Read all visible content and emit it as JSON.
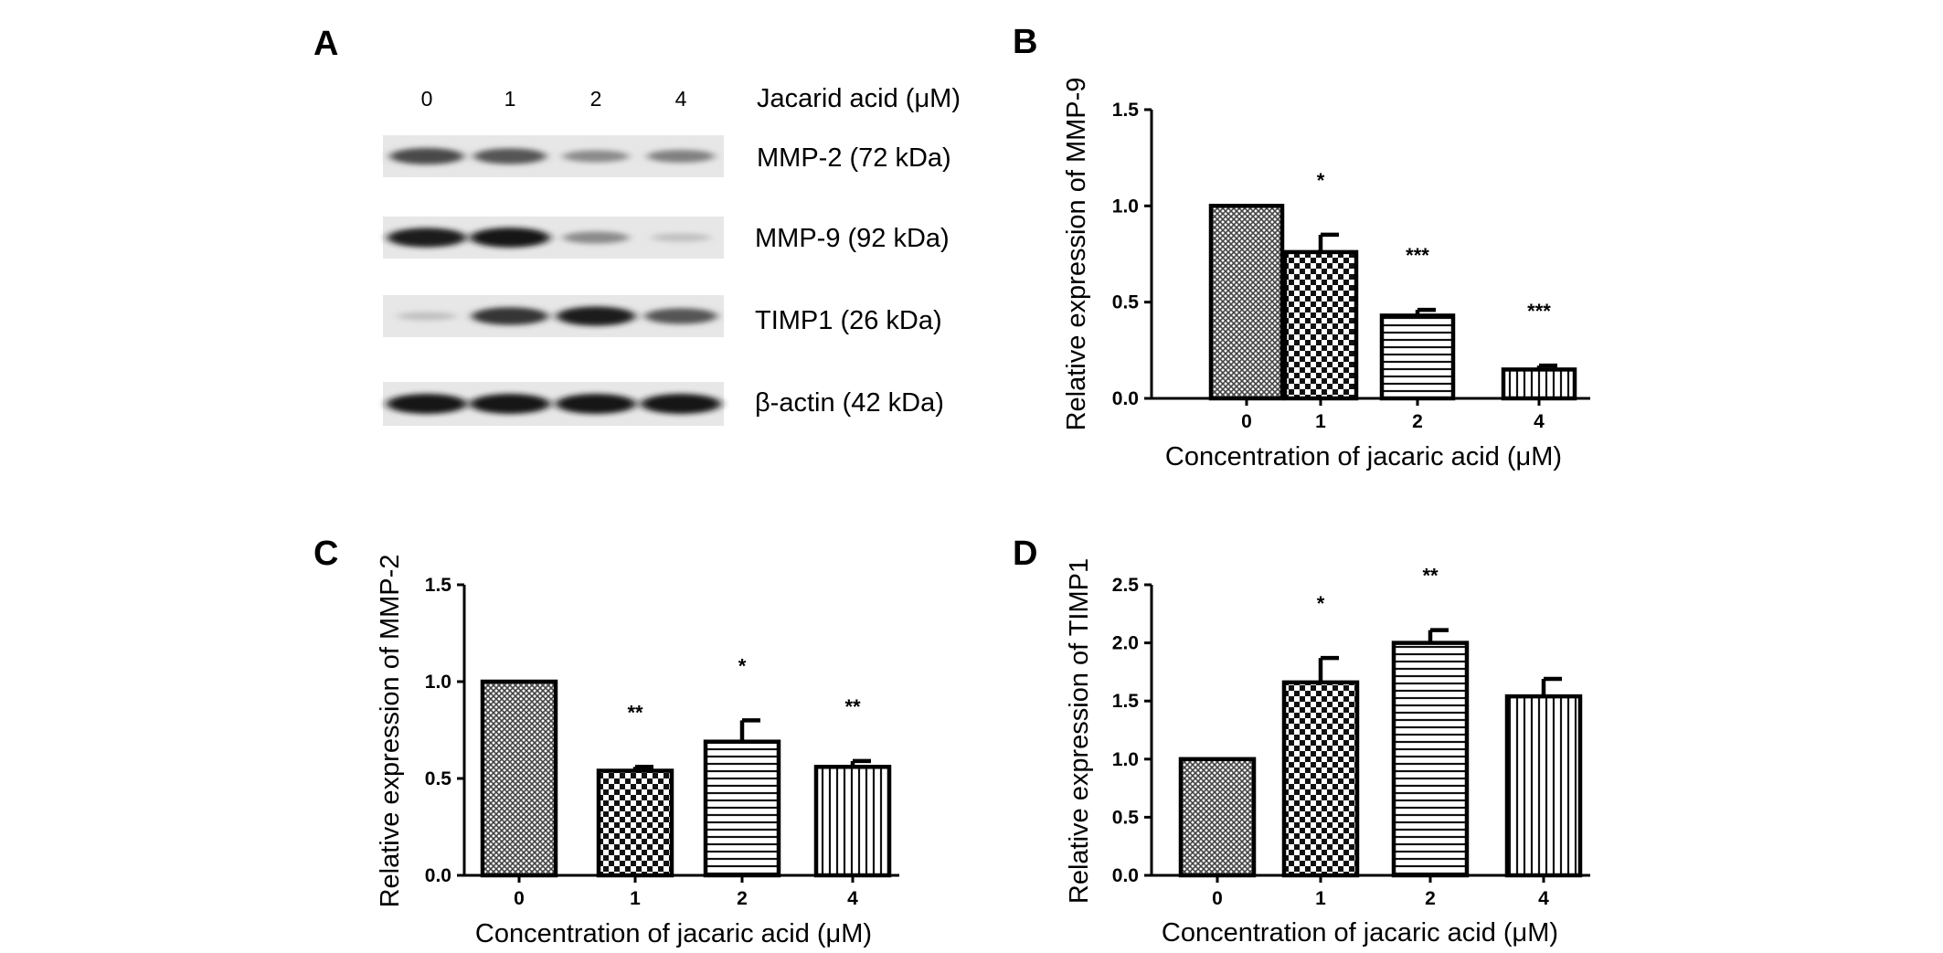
{
  "panel_labels": [
    "A",
    "B",
    "C",
    "D"
  ],
  "blot": {
    "lanes": [
      "0",
      "1",
      "2",
      "4"
    ],
    "title": "Jacarid acid (μM)",
    "bands": [
      {
        "label": "MMP-2 (72 kDa)",
        "intensities": [
          0.75,
          0.7,
          0.45,
          0.5
        ]
      },
      {
        "label": "MMP-9 (92 kDa)",
        "intensities": [
          0.95,
          0.98,
          0.45,
          0.2
        ]
      },
      {
        "label": "TIMP1 (26 kDa)",
        "intensities": [
          0.2,
          0.85,
          0.95,
          0.7
        ]
      },
      {
        "label": "β-actin (42 kDa)",
        "intensities": [
          1.0,
          1.0,
          1.0,
          1.0
        ]
      }
    ]
  },
  "chart_data": [
    {
      "panel": "B",
      "type": "bar",
      "categories": [
        "0",
        "1",
        "2",
        "4"
      ],
      "values": [
        1.0,
        0.76,
        0.43,
        0.15
      ],
      "errors": [
        0,
        0.09,
        0.03,
        0.02
      ],
      "significance": [
        "",
        "*",
        "***",
        "***"
      ],
      "patterns": [
        "crosshatch",
        "checker",
        "hlines",
        "vlines"
      ],
      "xlabel": "Concentration of jacaric acid (μM)",
      "ylabel": "Relative expression of MMP-9",
      "ylim": [
        0,
        1.5
      ],
      "yticks": [
        "0.0",
        "0.5",
        "1.0",
        "1.5"
      ]
    },
    {
      "panel": "C",
      "type": "bar",
      "categories": [
        "0",
        "1",
        "2",
        "4"
      ],
      "values": [
        1.0,
        0.54,
        0.69,
        0.56
      ],
      "errors": [
        0,
        0.02,
        0.11,
        0.03
      ],
      "significance": [
        "",
        "**",
        "*",
        "**"
      ],
      "patterns": [
        "crosshatch",
        "checker",
        "hlines",
        "vlines"
      ],
      "xlabel": "Concentration of jacaric acid (μM)",
      "ylabel": "Relative expression of MMP-2",
      "ylim": [
        0,
        1.5
      ],
      "yticks": [
        "0.0",
        "0.5",
        "1.0",
        "1.5"
      ]
    },
    {
      "panel": "D",
      "type": "bar",
      "categories": [
        "0",
        "1",
        "2",
        "4"
      ],
      "values": [
        1.0,
        1.66,
        2.0,
        1.54
      ],
      "errors": [
        0,
        0.21,
        0.11,
        0.15
      ],
      "significance": [
        "",
        "*",
        "**",
        ""
      ],
      "patterns": [
        "crosshatch",
        "checker",
        "hlines",
        "vlines"
      ],
      "xlabel": "Concentration of jacaric acid (μM)",
      "ylabel": "Relative expression of TIMP1",
      "ylim": [
        0,
        2.5
      ],
      "yticks": [
        "0.0",
        "0.5",
        "1.0",
        "1.5",
        "2.0",
        "2.5"
      ]
    }
  ]
}
